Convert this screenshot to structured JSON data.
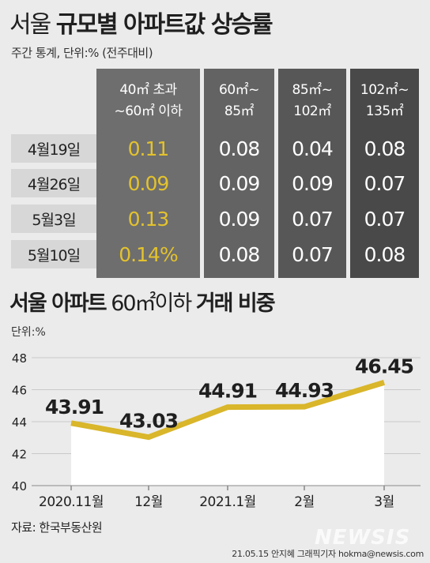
{
  "top": {
    "title_prefix": "서울",
    "title_bold": "규모별 아파트값 상승률",
    "subtitle": "주간 통계, 단위:% (전주대비)"
  },
  "table": {
    "headers": [
      "40㎡ 초과\n~60㎡ 이하",
      "60㎡~\n85㎡",
      "85㎡~\n102㎡",
      "102㎡~\n135㎡"
    ],
    "rows": [
      {
        "label": "4월19일",
        "values": [
          "0.11",
          "0.08",
          "0.04",
          "0.08"
        ]
      },
      {
        "label": "4월26일",
        "values": [
          "0.09",
          "0.09",
          "0.09",
          "0.07"
        ]
      },
      {
        "label": "5월3일",
        "values": [
          "0.13",
          "0.09",
          "0.07",
          "0.07"
        ]
      },
      {
        "label": "5월10일",
        "values": [
          "0.14%",
          "0.08",
          "0.07",
          "0.08"
        ]
      }
    ],
    "colors": {
      "col1": "#6e6e6e",
      "col2": "#636363",
      "col3": "#575757",
      "col4": "#494949",
      "highlight_text": "#e3c22e",
      "cell_text": "#ffffff"
    }
  },
  "bottom": {
    "title_a": "서울 아파트",
    "title_b": "60㎡이하",
    "title_c": "거래 비중",
    "unit": "단위:%"
  },
  "chart_data": {
    "type": "line",
    "categories": [
      "2020.11월",
      "12월",
      "2021.1월",
      "2월",
      "3월"
    ],
    "values": [
      43.91,
      43.03,
      44.91,
      44.93,
      46.45
    ],
    "data_labels": [
      "43.91",
      "43.03",
      "44.91",
      "44.93",
      "46.45"
    ],
    "y_ticks": [
      "48",
      "46",
      "44",
      "42",
      "40"
    ],
    "ylim": [
      40,
      48
    ],
    "grid": true,
    "line_color": "#d9b62a",
    "fill_color": "#ffffff"
  },
  "footer": {
    "source": "자료: 한국부동산원",
    "credit": "21.05.15 안지혜 그래픽기자 hokma@newsis.com",
    "watermark": "NEWSIS"
  }
}
